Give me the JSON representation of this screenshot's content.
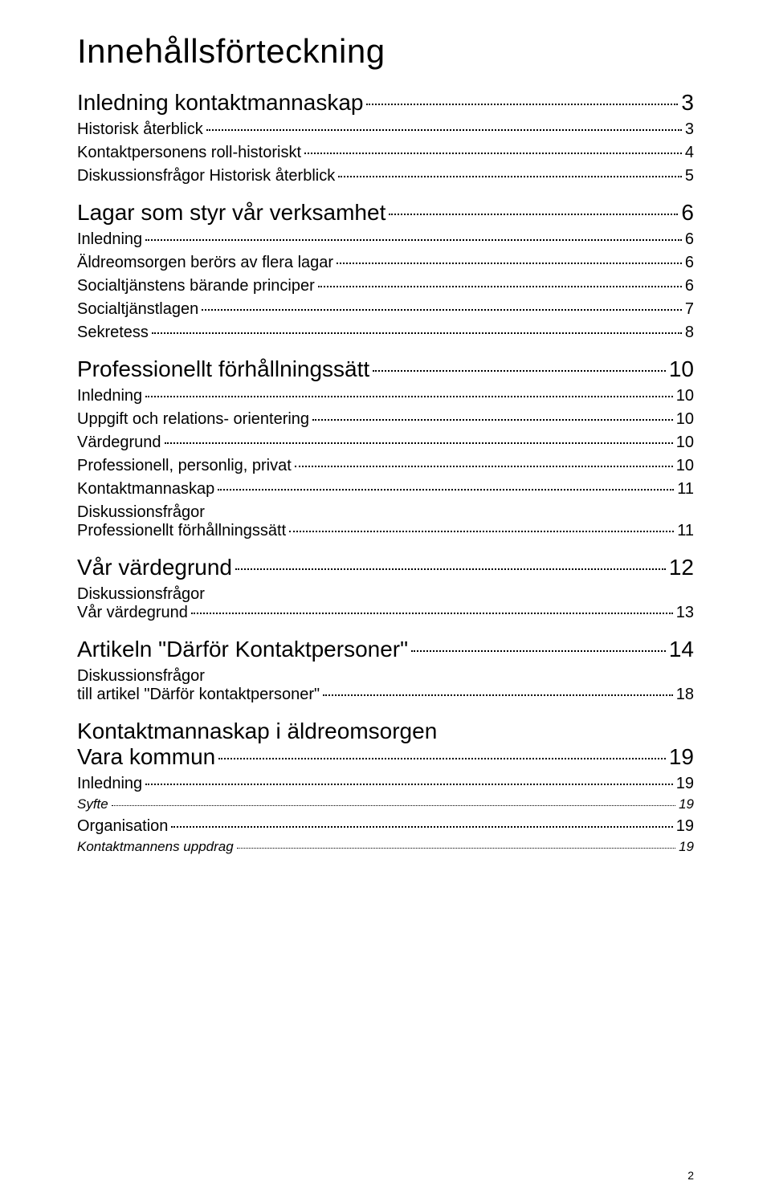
{
  "title": "Innehållsförteckning",
  "colors": {
    "text": "#000000",
    "background": "#ffffff",
    "leader": "#000000"
  },
  "typography": {
    "font_family": "Verdana",
    "title_size_pt": 32,
    "lvl1_size_pt": 21,
    "lvl2_size_pt": 15,
    "lvl3_size_pt": 13,
    "lvl3_style": "italic"
  },
  "toc": [
    {
      "level": 1,
      "label": "Inledning kontaktmannaskap",
      "page": "3"
    },
    {
      "level": 2,
      "label": "Historisk återblick",
      "page": "3"
    },
    {
      "level": 2,
      "label": "Kontaktpersonens roll-historiskt",
      "page": "4"
    },
    {
      "level": 2,
      "label": "Diskussionsfrågor Historisk återblick",
      "page": "5"
    },
    {
      "level": 1,
      "label": "Lagar som styr vår verksamhet",
      "page": "6"
    },
    {
      "level": 2,
      "label": "Inledning",
      "page": "6"
    },
    {
      "level": 2,
      "label": "Äldreomsorgen berörs av flera lagar",
      "page": "6"
    },
    {
      "level": 2,
      "label": "Socialtjänstens bärande principer",
      "page": "6"
    },
    {
      "level": 2,
      "label": "Socialtjänstlagen",
      "page": "7"
    },
    {
      "level": 2,
      "label": "Sekretess",
      "page": "8"
    },
    {
      "level": 1,
      "label": "Professionellt förhållningssätt",
      "page": "10"
    },
    {
      "level": 2,
      "label": "Inledning",
      "page": "10"
    },
    {
      "level": 2,
      "label": "Uppgift och relations- orientering",
      "page": "10"
    },
    {
      "level": 2,
      "label": "Värdegrund",
      "page": "10"
    },
    {
      "level": 2,
      "label": "Professionell, personlig, privat",
      "page": "10"
    },
    {
      "level": 2,
      "label": "Kontaktmannaskap",
      "page": "11"
    },
    {
      "level": 2,
      "label_line1": "Diskussionsfrågor",
      "label": "Professionellt förhållningssätt",
      "page": "11",
      "multiline": true
    },
    {
      "level": 1,
      "label": "Vår värdegrund",
      "page": "12"
    },
    {
      "level": 2,
      "label_line1": "Diskussionsfrågor",
      "label": "Vår värdegrund",
      "page": "13",
      "multiline": true
    },
    {
      "level": 1,
      "label": "Artikeln \"Därför Kontaktpersoner\"",
      "page": "14"
    },
    {
      "level": 2,
      "label_line1": "Diskussionsfrågor",
      "label": "till artikel \"Därför kontaktpersoner\"",
      "page": "18",
      "multiline": true
    },
    {
      "level": 1,
      "label_line1": "Kontaktmannaskap i äldreomsorgen",
      "label": "Vara kommun",
      "page": "19",
      "multiline": true
    },
    {
      "level": 2,
      "label": "Inledning",
      "page": "19"
    },
    {
      "level": 3,
      "label": "Syfte",
      "page": "19"
    },
    {
      "level": 2,
      "label": "Organisation",
      "page": "19"
    },
    {
      "level": 3,
      "label": "Kontaktmannens uppdrag",
      "page": "19"
    }
  ],
  "footer_page_number": "2"
}
